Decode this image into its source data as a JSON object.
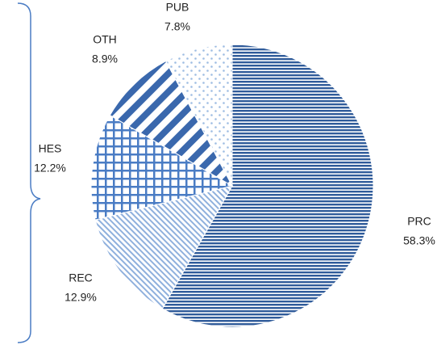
{
  "chart_data": {
    "type": "pie",
    "categories": [
      "PRC",
      "REC",
      "HES",
      "OTH",
      "PUB"
    ],
    "values": [
      58.3,
      12.9,
      12.2,
      8.9,
      7.8
    ],
    "value_labels": [
      "58.3%",
      "12.9%",
      "12.2%",
      "8.9%",
      "7.8%"
    ],
    "colors": [
      "#2f5b9a",
      "#8fb0dd",
      "#4a7cc4",
      "#3a68ad",
      "#9fbde3"
    ],
    "patterns": [
      "horizontal",
      "diagonal",
      "grid",
      "wide-diagonal",
      "dots"
    ]
  }
}
